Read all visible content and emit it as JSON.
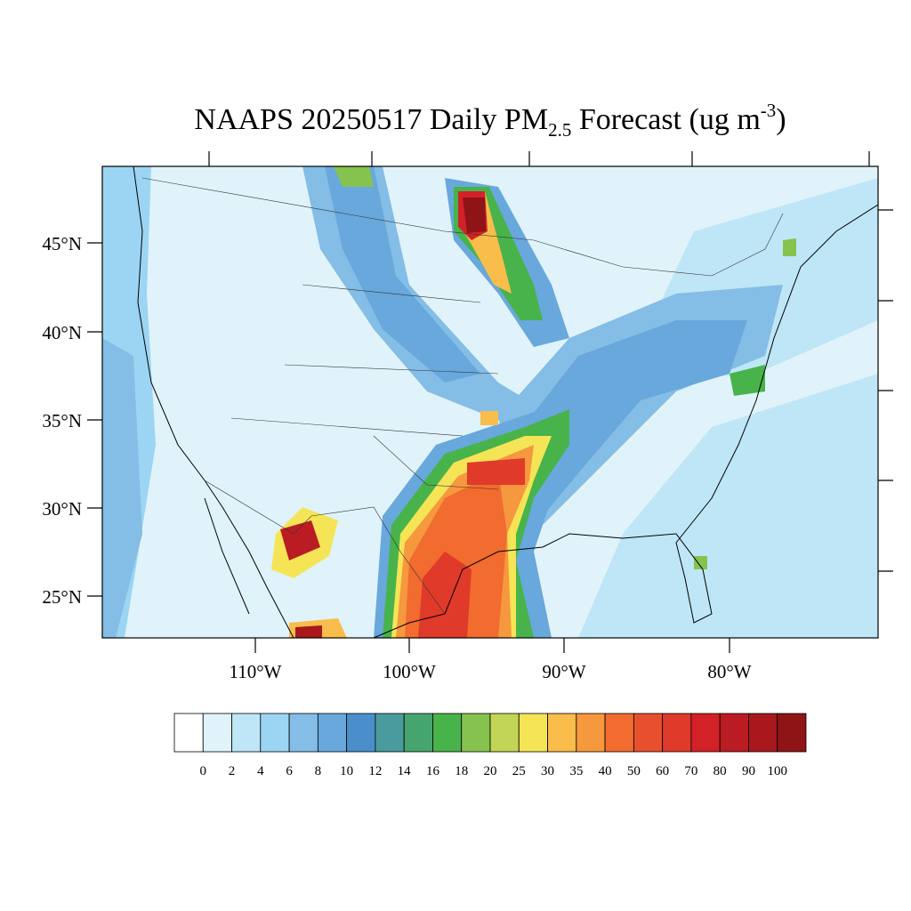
{
  "title": {
    "main": "NAAPS 20250517 Daily PM",
    "sub": "2.5",
    "rest": " Forecast (ug m",
    "sup": "-3",
    "end": ")"
  },
  "lat_labels": [
    "45°N",
    "40°N",
    "35°N",
    "30°N",
    "25°N"
  ],
  "lon_labels": [
    "110°W",
    "100°W",
    "90°W",
    "80°W"
  ],
  "colorbar": {
    "labels": [
      "0",
      "2",
      "4",
      "6",
      "8",
      "10",
      "12",
      "14",
      "16",
      "18",
      "20",
      "25",
      "30",
      "35",
      "40",
      "50",
      "60",
      "70",
      "80",
      "90",
      "100"
    ],
    "colors": [
      "#ffffff",
      "#e0f3fb",
      "#bfe6f7",
      "#9cd5f3",
      "#84bde6",
      "#68a8dc",
      "#4a8fcc",
      "#4a9b9e",
      "#46a56e",
      "#48b34a",
      "#86c24e",
      "#c2d556",
      "#f5e456",
      "#f8bd4a",
      "#f6983e",
      "#f26b2f",
      "#e8502d",
      "#df3a2a",
      "#d32128",
      "#b91c22",
      "#a8181c",
      "#8f1416"
    ]
  }
}
